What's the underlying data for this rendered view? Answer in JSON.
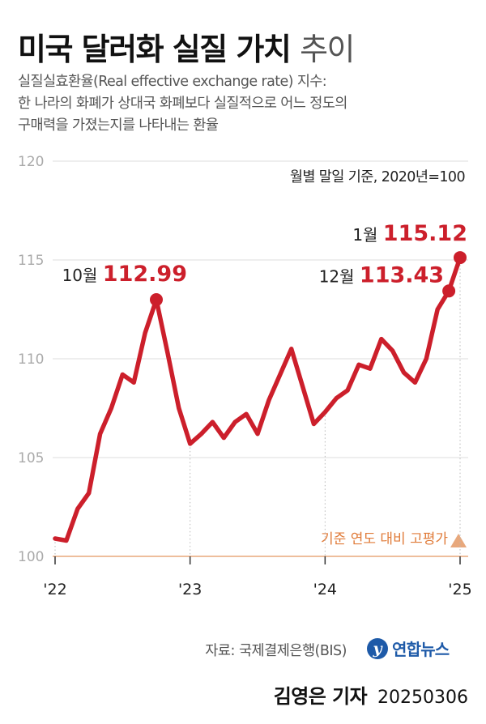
{
  "header": {
    "title_bold": "미국 달러화 실질 가치",
    "title_light": "추이",
    "subtitle_lines": [
      "실질실효환율(Real effective exchange rate) 지수:",
      "한 나라의 화폐가 상대국 화폐보다 실질적으로 어느 정도의",
      "구매력을 가졌는지를 나타내는 환율"
    ]
  },
  "basis_note": "월별 말일 기준, 2020년=100",
  "footer": {
    "source": "자료: 국제결제은행(BIS)",
    "logo_mark": "y",
    "logo_text": "연합뉴스",
    "byline_name": "김영은 기자",
    "byline_date": "20250306"
  },
  "colors": {
    "series": "#cc1f2b",
    "grid": "#dedede",
    "axis_label": "#aaaaaa",
    "baseline": "#e8a87c",
    "baseline_label": "#e07b39",
    "text_dark": "#222222"
  },
  "chart_data": {
    "type": "line",
    "ylim": [
      100,
      120
    ],
    "yticks": [
      100,
      105,
      110,
      115,
      120
    ],
    "xticks": [
      {
        "label": "'22",
        "index": 0
      },
      {
        "label": "'23",
        "index": 12
      },
      {
        "label": "'24",
        "index": 24
      },
      {
        "label": "'25",
        "index": 36
      }
    ],
    "x_start": "2022-01",
    "series": [
      {
        "values": [
          100.9,
          100.8,
          102.4,
          103.2,
          106.2,
          107.5,
          109.2,
          108.8,
          111.3,
          112.99,
          110.3,
          107.5,
          105.7,
          106.2,
          106.8,
          106.0,
          106.8,
          107.2,
          106.2,
          107.9,
          109.2,
          110.5,
          108.6,
          106.7,
          107.3,
          108.0,
          108.4,
          109.7,
          109.5,
          111.0,
          110.4,
          109.3,
          108.8,
          110.0,
          112.5,
          113.43,
          115.12
        ]
      }
    ],
    "annotations": [
      {
        "index": 9,
        "month_label": "10월",
        "value_label": "112.99"
      },
      {
        "index": 35,
        "month_label": "12월",
        "value_label": "113.43"
      },
      {
        "index": 36,
        "month_label": "1월",
        "value_label": "115.12"
      }
    ],
    "baseline": {
      "value": 100,
      "label": "기준 연도 대비 고평가"
    }
  }
}
